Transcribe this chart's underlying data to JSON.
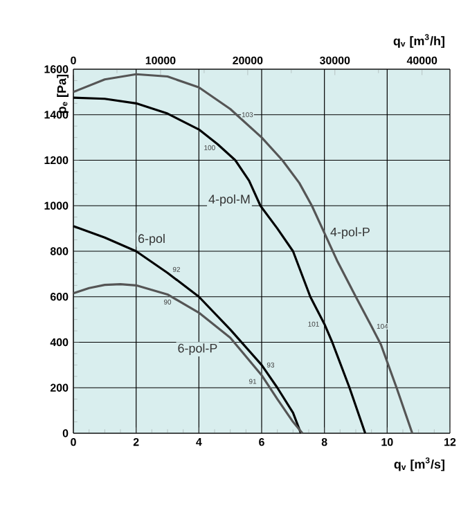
{
  "chart_data": {
    "type": "line",
    "xlabel": "q$_{v}$ [m$^{3}$/s]",
    "x2label": "q$_{v}$ [m$^{3}$/h]",
    "ylabel": "p$_{e}$ [Pa]",
    "xlim": [
      0,
      12
    ],
    "xticks": [
      0,
      2,
      4,
      6,
      8,
      10,
      12
    ],
    "x2lim": [
      0,
      43200
    ],
    "x2ticks": [
      0,
      10000,
      20000,
      30000,
      40000
    ],
    "ylim": [
      0,
      1600
    ],
    "yticks": [
      0,
      200,
      400,
      600,
      800,
      1000,
      1200,
      1400,
      1600
    ],
    "grid": true,
    "legend": false,
    "marker": "none",
    "line_style": "solid",
    "series": [
      {
        "name": "4-pol-P",
        "color": "#555555",
        "x": [
          0,
          1,
          2,
          3,
          4,
          5,
          5.2,
          6,
          6.66,
          7.2,
          7.6,
          8.0,
          8.4,
          9.0,
          9.5,
          9.8,
          10.3,
          10.8
        ],
        "values": [
          1500,
          1555,
          1578,
          1568,
          1520,
          1425,
          1400,
          1300,
          1200,
          1100,
          1000,
          880,
          760,
          600,
          470,
          390,
          200,
          0
        ]
      },
      {
        "name": "4-pol-M",
        "color": "#000000",
        "x": [
          0,
          1,
          2,
          3,
          4,
          4.6,
          5.16,
          5.6,
          5.96,
          6.5,
          7.0,
          7.55,
          8.0,
          8.25,
          8.8,
          9.3
        ],
        "values": [
          1475,
          1470,
          1450,
          1405,
          1335,
          1270,
          1200,
          1110,
          1000,
          900,
          800,
          600,
          480,
          400,
          200,
          0
        ]
      },
      {
        "name": "6-pol",
        "color": "#000000",
        "x": [
          0,
          1,
          2,
          3,
          4,
          5,
          6,
          6.5,
          7.0,
          7.25
        ],
        "values": [
          910,
          860,
          800,
          705,
          600,
          456,
          300,
          200,
          90,
          0
        ]
      },
      {
        "name": "6-pol-P",
        "color": "#555555",
        "x": [
          0,
          0.5,
          1,
          1.5,
          2,
          3,
          4,
          5,
          6,
          6.5,
          7.0,
          7.3
        ],
        "values": [
          615,
          638,
          652,
          655,
          650,
          610,
          530,
          420,
          255,
          150,
          50,
          0
        ]
      }
    ],
    "annotations": [
      {
        "text": "103",
        "x": 5.2,
        "y": 1400
      },
      {
        "text": "100",
        "x": 4.6,
        "y": 1270
      },
      {
        "text": "92",
        "x": 3,
        "y": 705
      },
      {
        "text": "90",
        "x": 3,
        "y": 610
      },
      {
        "text": "93",
        "x": 6,
        "y": 300
      },
      {
        "text": "91",
        "x": 6,
        "y": 255
      },
      {
        "text": "101",
        "x": 8.0,
        "y": 480
      },
      {
        "text": "104",
        "x": 9.5,
        "y": 470
      }
    ]
  }
}
